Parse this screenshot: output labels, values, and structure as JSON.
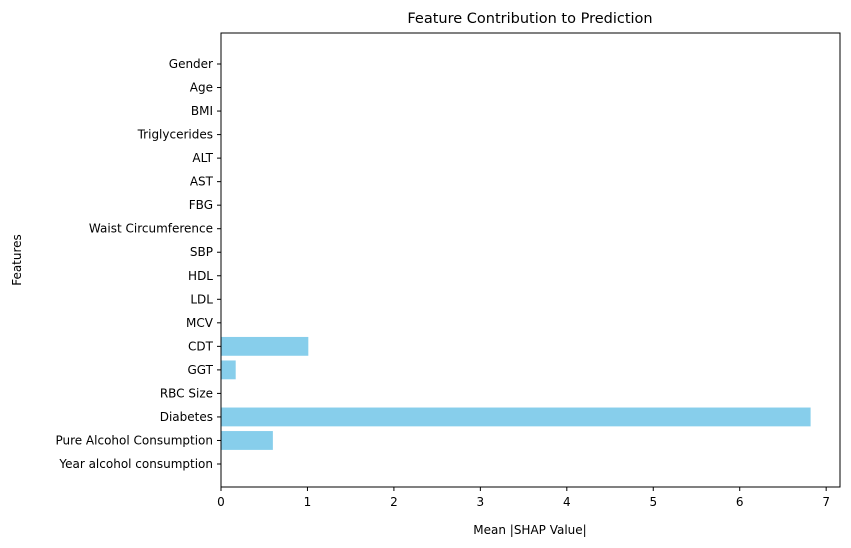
{
  "chart_data": {
    "type": "bar",
    "orientation": "horizontal",
    "title": "Feature Contribution to Prediction",
    "xlabel": "Mean |SHAP Value|",
    "ylabel": "Features",
    "xlim": [
      0,
      7.16
    ],
    "xticks": [
      0,
      1,
      2,
      3,
      4,
      5,
      6,
      7
    ],
    "categories": [
      "Year alcohol consumption",
      "Pure Alcohol Consumption",
      "Diabetes",
      "RBC Size",
      "GGT",
      "CDT",
      "MCV",
      "LDL",
      "HDL",
      "SBP",
      "Waist Circumference",
      "FBG",
      "AST",
      "ALT",
      "Triglycerides",
      "BMI",
      "Age",
      "Gender"
    ],
    "values": [
      0,
      0.6,
      6.82,
      0,
      0.17,
      1.01,
      0,
      0,
      0,
      0,
      0,
      0,
      0,
      0,
      0,
      0,
      0,
      0
    ],
    "bar_color": "#87ceeb",
    "grid": false
  }
}
